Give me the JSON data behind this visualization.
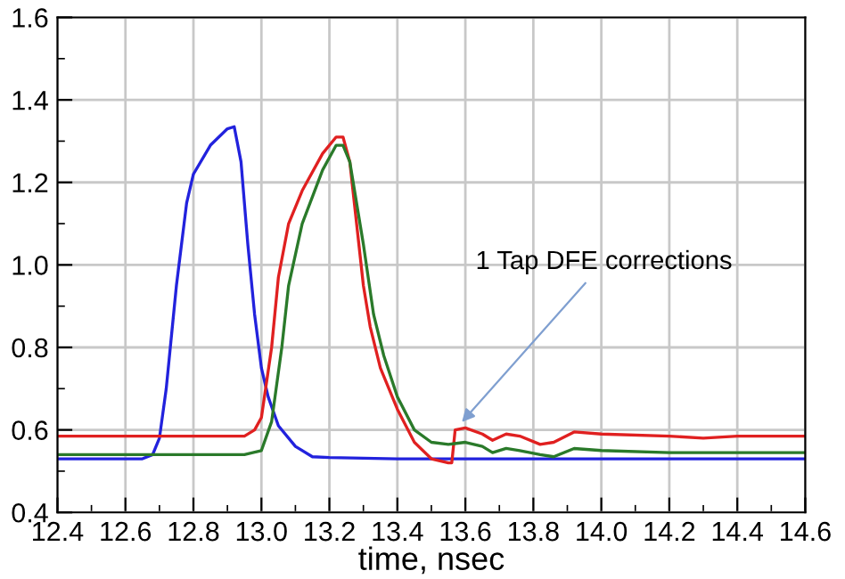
{
  "chart_data": {
    "type": "line",
    "xlabel": "time, nsec",
    "xlim": [
      12.4,
      14.6
    ],
    "xticks": [
      {
        "value": 12.4,
        "label": "12.4"
      },
      {
        "value": 12.6,
        "label": "12.6"
      },
      {
        "value": 12.8,
        "label": "12.8"
      },
      {
        "value": 13.0,
        "label": "13.0"
      },
      {
        "value": 13.2,
        "label": "13.2"
      },
      {
        "value": 13.4,
        "label": "13.4"
      },
      {
        "value": 13.6,
        "label": "13.6"
      },
      {
        "value": 13.8,
        "label": "13.8"
      },
      {
        "value": 14.0,
        "label": "14.0"
      },
      {
        "value": 14.2,
        "label": "14.2"
      },
      {
        "value": 14.4,
        "label": "14.4"
      },
      {
        "value": 14.6,
        "label": "14.6"
      }
    ],
    "ylim": [
      0.4,
      1.6
    ],
    "yticks": [
      {
        "value": 0.4,
        "label": "0.4"
      },
      {
        "value": 0.6,
        "label": "0.6"
      },
      {
        "value": 0.8,
        "label": "0.8"
      },
      {
        "value": 1.0,
        "label": "1.0"
      },
      {
        "value": 1.2,
        "label": "1.2"
      },
      {
        "value": 1.4,
        "label": "1.4"
      },
      {
        "value": 1.6,
        "label": "1.6"
      }
    ],
    "grid": true,
    "legend": false,
    "line_style": "solid",
    "marker": "none",
    "series": [
      {
        "color": "#2222dd",
        "x": [
          12.4,
          12.65,
          12.68,
          12.7,
          12.72,
          12.75,
          12.78,
          12.8,
          12.85,
          12.9,
          12.92,
          12.94,
          12.96,
          12.98,
          13.0,
          13.02,
          13.05,
          13.1,
          13.15,
          13.2,
          13.4,
          14.6
        ],
        "values": [
          0.53,
          0.53,
          0.54,
          0.58,
          0.7,
          0.95,
          1.15,
          1.22,
          1.29,
          1.33,
          1.335,
          1.25,
          1.05,
          0.88,
          0.75,
          0.68,
          0.61,
          0.56,
          0.535,
          0.533,
          0.53,
          0.53
        ]
      },
      {
        "color": "#e02020",
        "x": [
          12.4,
          12.95,
          12.98,
          13.0,
          13.03,
          13.05,
          13.08,
          13.12,
          13.18,
          13.22,
          13.24,
          13.26,
          13.28,
          13.3,
          13.32,
          13.35,
          13.4,
          13.45,
          13.5,
          13.55,
          13.56,
          13.57,
          13.6,
          13.65,
          13.68,
          13.72,
          13.76,
          13.82,
          13.86,
          13.92,
          14.0,
          14.2,
          14.3,
          14.4,
          14.6
        ],
        "values": [
          0.585,
          0.585,
          0.6,
          0.63,
          0.8,
          0.97,
          1.1,
          1.18,
          1.27,
          1.31,
          1.31,
          1.25,
          1.1,
          0.95,
          0.85,
          0.75,
          0.65,
          0.57,
          0.53,
          0.52,
          0.52,
          0.6,
          0.605,
          0.59,
          0.575,
          0.59,
          0.585,
          0.565,
          0.57,
          0.595,
          0.59,
          0.585,
          0.58,
          0.585,
          0.585
        ]
      },
      {
        "color": "#2a7a2a",
        "x": [
          12.4,
          12.95,
          13.0,
          13.03,
          13.06,
          13.08,
          13.12,
          13.18,
          13.22,
          13.24,
          13.26,
          13.3,
          13.33,
          13.36,
          13.4,
          13.45,
          13.5,
          13.55,
          13.6,
          13.65,
          13.68,
          13.72,
          13.76,
          13.82,
          13.86,
          13.92,
          14.0,
          14.2,
          14.6
        ],
        "values": [
          0.54,
          0.54,
          0.55,
          0.62,
          0.8,
          0.95,
          1.1,
          1.23,
          1.29,
          1.29,
          1.25,
          1.05,
          0.88,
          0.78,
          0.68,
          0.6,
          0.57,
          0.565,
          0.57,
          0.56,
          0.545,
          0.555,
          0.55,
          0.54,
          0.535,
          0.555,
          0.55,
          0.545,
          0.545
        ]
      }
    ],
    "annotations": [
      {
        "text": "1 Tap DFE corrections",
        "x": 13.58,
        "y": 0.61
      }
    ]
  }
}
